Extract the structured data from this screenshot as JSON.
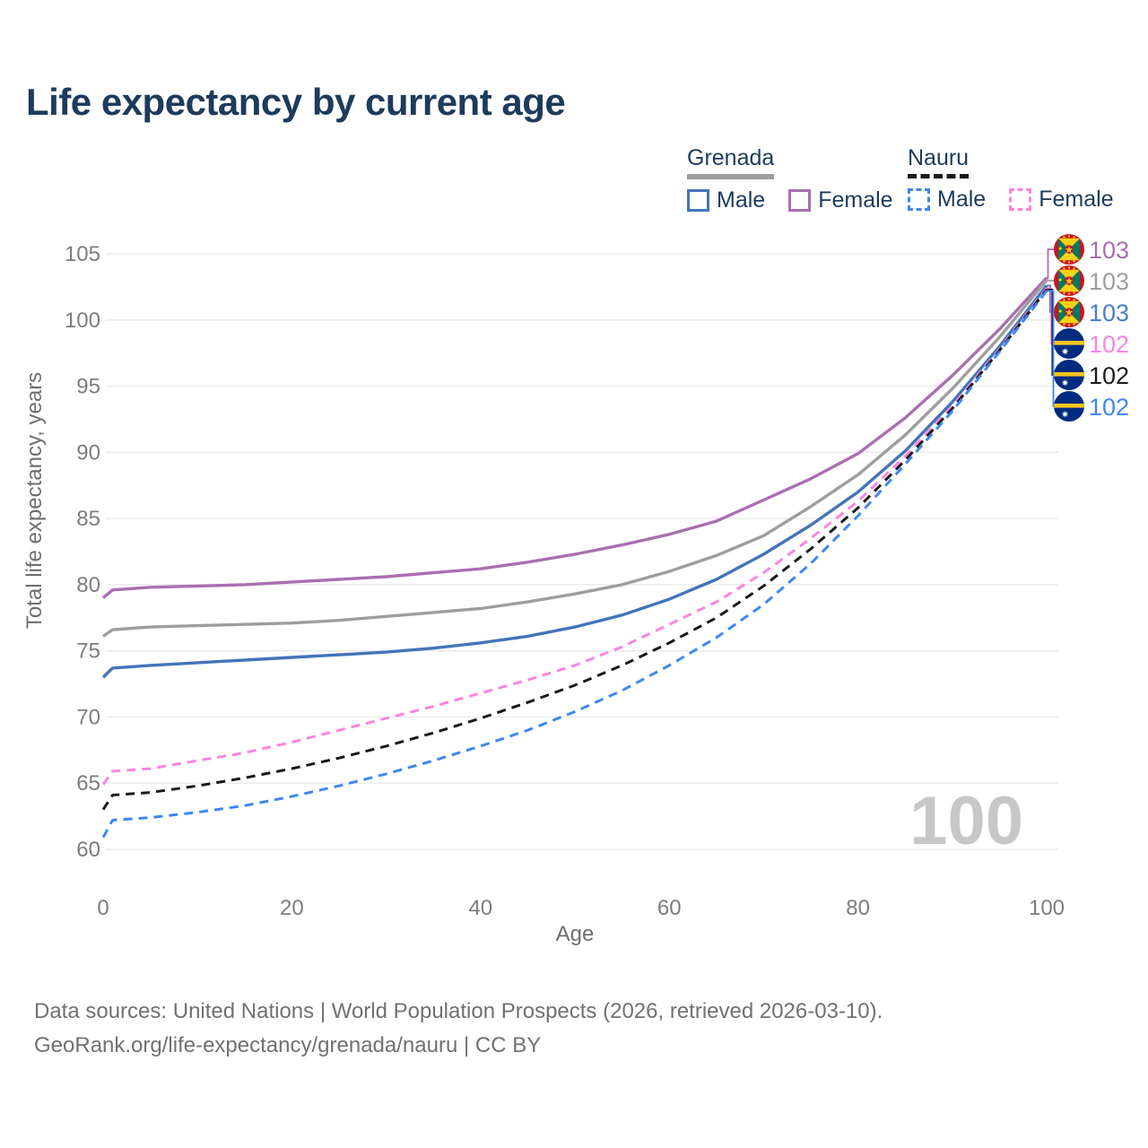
{
  "title": "Life expectancy by current age",
  "watermark": "100",
  "legend": {
    "groups": [
      {
        "country": "Grenada",
        "style": "solid",
        "underline_color": "#9e9e9e",
        "items": [
          {
            "label": "Male",
            "color": "#4374b9"
          },
          {
            "label": "Female",
            "color": "#a96fb0"
          }
        ]
      },
      {
        "country": "Nauru",
        "style": "dashed",
        "underline_color": "#1a1a1a",
        "items": [
          {
            "label": "Male",
            "color": "#3f87f3"
          },
          {
            "label": "Female",
            "color": "#fb84e1"
          }
        ]
      }
    ]
  },
  "footer": {
    "line1": "Data sources: United Nations | World Population Prospects (2026, retrieved 2026-03-10).",
    "line2": "GeoRank.org/life-expectancy/grenada/nauru | CC BY"
  },
  "chart_data": {
    "type": "line",
    "title": "Life expectancy by current age",
    "xlabel": "Age",
    "ylabel": "Total life expectancy, years",
    "xlim": [
      0,
      100
    ],
    "ylim": [
      60,
      105
    ],
    "xticks": [
      0,
      20,
      40,
      60,
      80,
      100
    ],
    "yticks": [
      60,
      65,
      70,
      75,
      80,
      85,
      90,
      95,
      100,
      105
    ],
    "grid": true,
    "legend_position": "top-right",
    "x": [
      0,
      1,
      5,
      10,
      15,
      20,
      25,
      30,
      35,
      40,
      45,
      50,
      55,
      60,
      65,
      70,
      75,
      80,
      85,
      90,
      95,
      100
    ],
    "series": [
      {
        "name": "Grenada Female",
        "country": "Grenada",
        "sex": "Female",
        "dash": "solid",
        "color": "#a96fb0",
        "label_color": "#a96fb0",
        "flag": "grenada-flag-icon",
        "end_label": "103",
        "values": [
          79.0,
          79.6,
          79.8,
          79.9,
          80.0,
          80.2,
          80.4,
          80.6,
          80.9,
          81.2,
          81.7,
          82.3,
          83.0,
          83.8,
          84.8,
          86.4,
          88.0,
          89.9,
          92.6,
          95.8,
          99.3,
          103.2
        ]
      },
      {
        "name": "Grenada Both sexes",
        "country": "Grenada",
        "sex": "Both",
        "dash": "solid",
        "color": "#9e9e9e",
        "label_color": "#9e9e9e",
        "flag": "grenada-flag-icon",
        "end_label": "103",
        "values": [
          76.1,
          76.6,
          76.8,
          76.9,
          77.0,
          77.1,
          77.3,
          77.6,
          77.9,
          78.2,
          78.7,
          79.3,
          80.0,
          81.0,
          82.2,
          83.7,
          85.9,
          88.3,
          91.3,
          94.8,
          98.7,
          103.0
        ]
      },
      {
        "name": "Grenada Male",
        "country": "Grenada",
        "sex": "Male",
        "dash": "solid",
        "color": "#4374b9",
        "label_color": "#4a7ed2",
        "flag": "grenada-flag-icon",
        "end_label": "103",
        "values": [
          73.0,
          73.7,
          73.9,
          74.1,
          74.3,
          74.5,
          74.7,
          74.9,
          75.2,
          75.6,
          76.1,
          76.8,
          77.7,
          78.9,
          80.4,
          82.3,
          84.5,
          87.0,
          90.1,
          93.8,
          98.0,
          102.6
        ]
      },
      {
        "name": "Nauru Female",
        "country": "Nauru",
        "sex": "Female",
        "dash": "dashed",
        "color": "#fb84e1",
        "label_color": "#fb84e1",
        "flag": "nauru-flag-icon",
        "end_label": "102",
        "values": [
          64.9,
          65.9,
          66.1,
          66.7,
          67.3,
          68.1,
          69.0,
          69.9,
          70.8,
          71.8,
          72.8,
          73.9,
          75.3,
          77.0,
          78.7,
          80.9,
          83.5,
          86.3,
          89.7,
          93.5,
          97.8,
          102.4
        ]
      },
      {
        "name": "Nauru Both sexes",
        "country": "Nauru",
        "sex": "Both",
        "dash": "dashed",
        "color": "#1a1a1a",
        "label_color": "#1a1a1a",
        "flag": "nauru-flag-icon",
        "end_label": "102",
        "values": [
          63.0,
          64.1,
          64.3,
          64.8,
          65.4,
          66.1,
          66.9,
          67.8,
          68.8,
          69.9,
          71.1,
          72.4,
          73.9,
          75.6,
          77.5,
          79.9,
          82.7,
          85.8,
          89.4,
          93.3,
          97.7,
          102.3
        ]
      },
      {
        "name": "Nauru Male",
        "country": "Nauru",
        "sex": "Male",
        "dash": "dashed",
        "color": "#3f87f3",
        "label_color": "#3f87f3",
        "flag": "nauru-flag-icon",
        "end_label": "102",
        "values": [
          60.9,
          62.2,
          62.4,
          62.8,
          63.3,
          64.0,
          64.8,
          65.7,
          66.7,
          67.8,
          69.0,
          70.4,
          72.0,
          73.9,
          76.0,
          78.5,
          81.6,
          85.2,
          89.1,
          93.1,
          97.6,
          102.2
        ]
      }
    ]
  }
}
